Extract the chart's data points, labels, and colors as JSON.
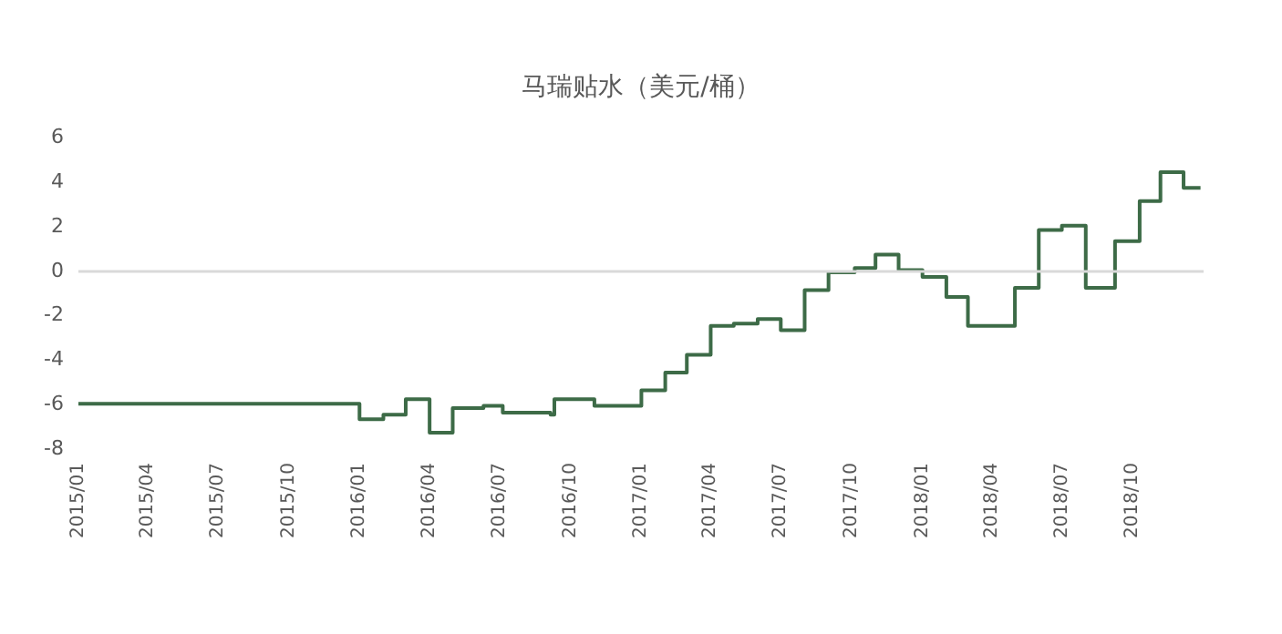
{
  "chart_data": {
    "type": "step",
    "title": "马瑞贴水（美元/桶）",
    "x": [
      "2015-01",
      "2016-01",
      "2016-02",
      "2016-03",
      "2016-04",
      "2016-05",
      "2016-06-10",
      "2016-07-05",
      "2016-09-05",
      "2016-09-10",
      "2016-11",
      "2017-01",
      "2017-02",
      "2017-03",
      "2017-04",
      "2017-05",
      "2017-06",
      "2017-07",
      "2017-08",
      "2017-09",
      "2017-10-05",
      "2017-11",
      "2017-12",
      "2018-01",
      "2018-02",
      "2018-03",
      "2018-05",
      "2018-06",
      "2018-07",
      "2018-08",
      "2018-09-08",
      "2018-10-10",
      "2018-11-06",
      "2018-12-06",
      "2018-12-28"
    ],
    "series": [
      {
        "color": "#3d6b47",
        "values": [
          -6,
          -6.7,
          -6.5,
          -5.8,
          -7.3,
          -6.2,
          -6.1,
          -6.4,
          -6.5,
          -5.8,
          -6.1,
          -5.4,
          -4.6,
          -3.8,
          -2.5,
          -2.4,
          -2.2,
          -2.7,
          -0.9,
          -0.1,
          0.1,
          0.7,
          0,
          -0.3,
          -1.2,
          -2.5,
          -0.8,
          1.8,
          2,
          -0.8,
          1.3,
          3.1,
          4.4,
          3.7,
          3.7
        ]
      }
    ],
    "xlim": [
      "2015-01",
      "2019-01"
    ],
    "xticks": [
      {
        "value": "2015-01",
        "label": "2015/01"
      },
      {
        "value": "2015-04",
        "label": "2015/04"
      },
      {
        "value": "2015-07",
        "label": "2015/07"
      },
      {
        "value": "2015-10",
        "label": "2015/10"
      },
      {
        "value": "2016-01",
        "label": "2016/01"
      },
      {
        "value": "2016-04",
        "label": "2016/04"
      },
      {
        "value": "2016-07",
        "label": "2016/07"
      },
      {
        "value": "2016-10",
        "label": "2016/10"
      },
      {
        "value": "2017-01",
        "label": "2017/01"
      },
      {
        "value": "2017-04",
        "label": "2017/04"
      },
      {
        "value": "2017-07",
        "label": "2017/07"
      },
      {
        "value": "2017-10",
        "label": "2017/10"
      },
      {
        "value": "2018-01",
        "label": "2018/01"
      },
      {
        "value": "2018-04",
        "label": "2018/04"
      },
      {
        "value": "2018-07",
        "label": "2018/07"
      },
      {
        "value": "2018-10",
        "label": "2018/10"
      }
    ],
    "ylim": [
      -8,
      6
    ],
    "yticks": [
      -8,
      -6,
      -4,
      -2,
      0,
      2,
      4,
      6
    ],
    "ref_lines": [
      {
        "axis": "y",
        "value": 0,
        "color": "#d9d9d9"
      }
    ],
    "grid": false,
    "marker": "none",
    "line_style": "solid"
  }
}
